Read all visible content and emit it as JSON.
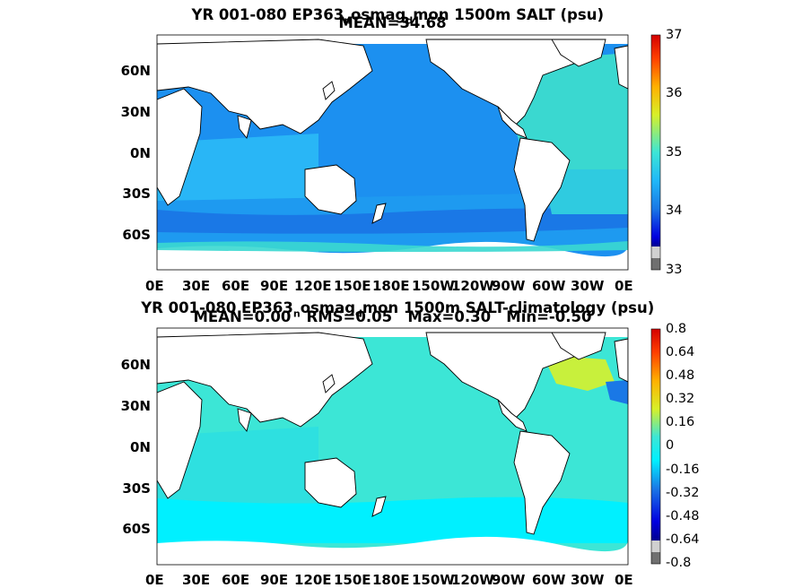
{
  "top_panel": {
    "title_line1": "YR 001-080 EP363",
    "title_sub": "n",
    "title_mid": "osmag",
    "title_sub2": "d",
    "title_tail": "mon 1500m SALT (psu)",
    "title_line2": "MEAN=34.68",
    "y_ticks": [
      "60N",
      "30N",
      "0N",
      "30S",
      "60S"
    ],
    "x_ticks": [
      "0E",
      "30E",
      "60E",
      "90E",
      "120E",
      "150E",
      "180E",
      "150W",
      "120W",
      "90W",
      "60W",
      "30W",
      "0E"
    ],
    "colorbar_ticks": [
      "37",
      "36",
      "35",
      "34",
      "33"
    ]
  },
  "bottom_panel": {
    "title_line1": "YR 001-080 EP363",
    "title_sub": "n",
    "title_mid": "osmag",
    "title_sub2": "d",
    "title_tail": "mon 1500m SALT-climatology (psu)",
    "title_line2": "MEAN=0.00   RMS=0.05   Max=0.30   Min=-0.50",
    "y_ticks": [
      "60N",
      "30N",
      "0N",
      "30S",
      "60S"
    ],
    "x_ticks": [
      "0E",
      "30E",
      "60E",
      "90E",
      "120E",
      "150E",
      "180E",
      "150W",
      "120W",
      "90W",
      "60W",
      "30W",
      "0E"
    ],
    "colorbar_ticks": [
      "0.8",
      "0.64",
      "0.48",
      "0.32",
      "0.16",
      "0",
      "-0.16",
      "-0.32",
      "-0.48",
      "-0.64",
      "-0.8"
    ]
  },
  "colors": {
    "land": "#ffffff",
    "coast": "#000000",
    "top_ocean_main": "#1c90f0",
    "top_ocean_atlantic": "#3ad8d0",
    "top_ocean_south": "#29b6f6",
    "bottom_ocean_main": "#3ce6d6",
    "bottom_ocean_pos": "#c8f03c",
    "bottom_ocean_neg": "#00f0ff"
  }
}
